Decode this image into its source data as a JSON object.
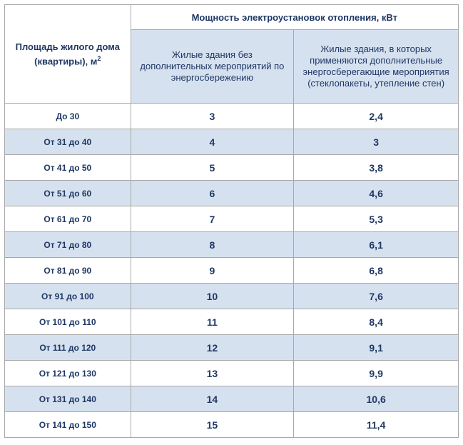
{
  "table": {
    "header": {
      "area_label": "Площадь жилого дома (квартиры), м",
      "area_unit_sup": "2",
      "power_label": "Мощность электроустановок отопления, кВт",
      "col_base_label": "Жилые здания без дополнительных мероприятий по энергосбережению",
      "col_extra_label": "Жилые здания, в которых применяются дополнительные энергосберегающие мероприятия (стеклопакеты, утепление стен)"
    },
    "rows": [
      {
        "area": "До 30",
        "base": "3",
        "extra": "2,4"
      },
      {
        "area": "От 31 до 40",
        "base": "4",
        "extra": "3"
      },
      {
        "area": "От 41 до 50",
        "base": "5",
        "extra": "3,8"
      },
      {
        "area": "От 51 до 60",
        "base": "6",
        "extra": "4,6"
      },
      {
        "area": "От 61 до 70",
        "base": "7",
        "extra": "5,3"
      },
      {
        "area": "От 71 до 80",
        "base": "8",
        "extra": "6,1"
      },
      {
        "area": "От 81 до 90",
        "base": "9",
        "extra": "6,8"
      },
      {
        "area": "От 91 до 100",
        "base": "10",
        "extra": "7,6"
      },
      {
        "area": "От 101 до 110",
        "base": "11",
        "extra": "8,4"
      },
      {
        "area": "От 111 до 120",
        "base": "12",
        "extra": "9,1"
      },
      {
        "area": "От 121 до 130",
        "base": "13",
        "extra": "9,9"
      },
      {
        "area": "От 131 до 140",
        "base": "14",
        "extra": "10,6"
      },
      {
        "area": "От 141 до 150",
        "base": "15",
        "extra": "11,4"
      }
    ]
  },
  "colors": {
    "text": "#1f3864",
    "band": "#d6e1f0",
    "border": "#a8a8a8"
  }
}
